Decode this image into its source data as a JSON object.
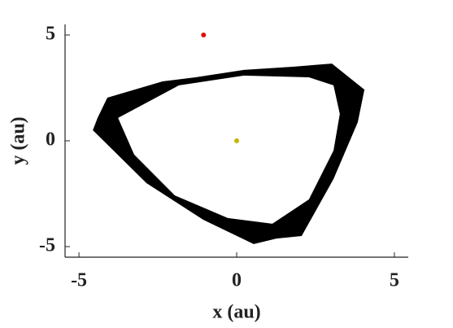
{
  "chart_data": {
    "type": "scatter",
    "xlabel": "x (au)",
    "ylabel": "y (au)",
    "xlim": [
      -5.44,
      5.44
    ],
    "ylim": [
      -5.5,
      5.5
    ],
    "xticks": [
      -5,
      0,
      5
    ],
    "yticks": [
      -5,
      0,
      5
    ],
    "band": {
      "color": "#000000",
      "outer": {
        "x": [
          -4.1,
          -2.35,
          -1.31,
          0.23,
          1.78,
          3.02,
          4.05,
          3.84,
          3.07,
          2.06,
          1.26,
          0.54,
          -1.06,
          -2.86,
          -4.56,
          -4.41
        ],
        "y": [
          2.04,
          2.81,
          3.0,
          3.35,
          3.5,
          3.65,
          2.42,
          0.88,
          -1.81,
          -4.5,
          -4.62,
          -4.88,
          -3.73,
          -2.0,
          0.5,
          1.08
        ]
      },
      "inner": {
        "x": [
          -3.76,
          -1.83,
          0.23,
          2.29,
          3.07,
          3.27,
          3.07,
          2.29,
          1.13,
          -0.28,
          -1.96,
          -3.25
        ],
        "y": [
          1.08,
          2.62,
          3.08,
          3.0,
          2.62,
          1.27,
          -0.46,
          -2.77,
          -3.92,
          -3.65,
          -2.58,
          -0.65
        ]
      }
    },
    "series": [
      {
        "color": "#e01010",
        "x": [
          -1.05
        ],
        "y": [
          5
        ]
      },
      {
        "color": "#c8b400",
        "x": [
          0
        ],
        "y": [
          0
        ]
      }
    ]
  }
}
